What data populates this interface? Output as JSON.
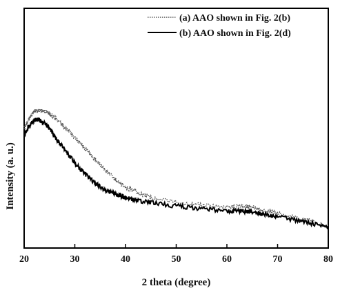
{
  "chart_data": {
    "type": "line",
    "xlabel": "2 theta (degree)",
    "ylabel": "Intensity (a. u.)",
    "xlim": [
      20,
      80
    ],
    "xticks": [
      20,
      30,
      40,
      50,
      60,
      70,
      80
    ],
    "y_tick_labels_shown": false,
    "ylim": [
      0,
      1
    ],
    "legend_position": "top-right",
    "grid": false,
    "series": [
      {
        "name": "(a) AAO shown in Fig. 2(b)",
        "style": "dotted",
        "color": "#555555",
        "x": [
          20,
          21,
          22,
          23,
          24,
          25,
          26,
          28,
          30,
          32,
          34,
          36,
          38,
          40,
          42,
          45,
          50,
          55,
          60,
          63,
          65,
          68,
          70,
          75,
          80
        ],
        "y": [
          0.5,
          0.54,
          0.57,
          0.575,
          0.57,
          0.56,
          0.545,
          0.505,
          0.46,
          0.415,
          0.37,
          0.325,
          0.285,
          0.255,
          0.235,
          0.21,
          0.19,
          0.18,
          0.17,
          0.175,
          0.17,
          0.155,
          0.145,
          0.12,
          0.095
        ]
      },
      {
        "name": "(b) AAO shown in Fig. 2(d)",
        "style": "solid",
        "color": "#000000",
        "x": [
          20,
          21,
          22,
          23,
          24,
          25,
          26,
          28,
          30,
          32,
          34,
          36,
          38,
          40,
          42,
          45,
          50,
          55,
          60,
          63,
          65,
          68,
          70,
          75,
          80
        ],
        "y": [
          0.47,
          0.51,
          0.535,
          0.535,
          0.52,
          0.5,
          0.465,
          0.41,
          0.355,
          0.31,
          0.27,
          0.24,
          0.225,
          0.21,
          0.2,
          0.19,
          0.175,
          0.165,
          0.155,
          0.155,
          0.15,
          0.14,
          0.13,
          0.11,
          0.09
        ]
      }
    ]
  }
}
